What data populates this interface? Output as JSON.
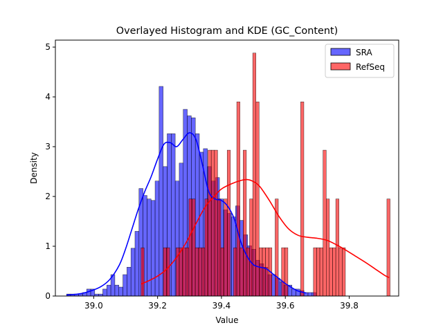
{
  "chart_data": {
    "type": "histogram",
    "title": "Overlayed Histogram and KDE (GC_Content)",
    "xlabel": "Value",
    "ylabel": "Density",
    "xlim": [
      38.88,
      39.955
    ],
    "ylim": [
      0,
      5.14
    ],
    "xticks": [
      39.0,
      39.2,
      39.4,
      39.6,
      39.8
    ],
    "xtick_labels": [
      "39.0",
      "39.2",
      "39.4",
      "39.6",
      "39.8"
    ],
    "yticks": [
      0,
      1,
      2,
      3,
      4,
      5
    ],
    "ytick_labels": [
      "0",
      "1",
      "2",
      "3",
      "4",
      "5"
    ],
    "grid": false,
    "legend_position": "top-right",
    "legend": [
      {
        "label": "SRA",
        "color": "#0000ff"
      },
      {
        "label": "RefSeq",
        "color": "#ff0000"
      }
    ],
    "series": [
      {
        "name": "SRA",
        "color": "#0000ff",
        "bin_start": 38.915,
        "bin_width": 0.0126,
        "densities": [
          0.04,
          0.04,
          0.04,
          0.04,
          0.07,
          0.14,
          0.14,
          0.04,
          0.04,
          0.14,
          0.22,
          0.43,
          0.22,
          0.18,
          0.43,
          0.58,
          0.96,
          1.3,
          2.16,
          2.02,
          1.95,
          1.92,
          2.31,
          4.21,
          2.6,
          3.26,
          3.26,
          2.31,
          2.67,
          3.75,
          3.62,
          3.58,
          3.26,
          2.89,
          2.96,
          2.6,
          2.31,
          2.38,
          1.95,
          1.73,
          1.66,
          1.59,
          1.81,
          1.52,
          1.23,
          1.01,
          0.94,
          0.72,
          0.65,
          0.58,
          0.43,
          0.43,
          0.36,
          0.29,
          0.22,
          0.22,
          0.14,
          0.14,
          0.11,
          0.07,
          0.07,
          0.07
        ]
      },
      {
        "name": "RefSeq",
        "color": "#ff0000",
        "bin_start": 39.148,
        "bin_width": 0.01,
        "densities": [
          0.97,
          0,
          0,
          0,
          0,
          0,
          0,
          0.97,
          0.97,
          0,
          0,
          0.97,
          0.97,
          0.97,
          0.97,
          1.95,
          1.95,
          0.97,
          0.97,
          0.97,
          1.95,
          2.93,
          2.93,
          2.93,
          1.95,
          0.97,
          1.95,
          2.93,
          0,
          0.97,
          3.9,
          0.97,
          2.93,
          0.97,
          1.95,
          4.88,
          3.9,
          0.97,
          0.97,
          0.97,
          0.97,
          0,
          1.95,
          0,
          0.97,
          0.97,
          0,
          0,
          0,
          0,
          3.9,
          0,
          0,
          0,
          0.97,
          0.97,
          0.97,
          2.93,
          1.95,
          0.97,
          0.97,
          1.95,
          0.97,
          0.97,
          0,
          0,
          0,
          0,
          0,
          0,
          0,
          0,
          0,
          0,
          0,
          0,
          0,
          1.95
        ]
      }
    ],
    "kde": [
      {
        "name": "SRA",
        "color": "#0000ff",
        "x": [
          38.915,
          38.95,
          38.98,
          39.02,
          39.05,
          39.08,
          39.1,
          39.12,
          39.14,
          39.16,
          39.18,
          39.2,
          39.22,
          39.24,
          39.26,
          39.28,
          39.3,
          39.32,
          39.34,
          39.36,
          39.38,
          39.4,
          39.42,
          39.44,
          39.46,
          39.48,
          39.5,
          39.52,
          39.54,
          39.56,
          39.58,
          39.6,
          39.62,
          39.64,
          39.666
        ],
        "y": [
          0.02,
          0.04,
          0.08,
          0.18,
          0.33,
          0.62,
          0.95,
          1.35,
          1.75,
          2.1,
          2.4,
          2.75,
          3.05,
          3.08,
          3.0,
          3.15,
          3.28,
          3.15,
          2.65,
          2.1,
          1.95,
          1.92,
          1.8,
          1.55,
          1.1,
          0.8,
          0.63,
          0.58,
          0.55,
          0.45,
          0.35,
          0.25,
          0.17,
          0.1,
          0.06
        ]
      },
      {
        "name": "RefSeq",
        "color": "#ff0000",
        "x": [
          39.148,
          39.17,
          39.2,
          39.23,
          39.26,
          39.29,
          39.32,
          39.35,
          39.38,
          39.4,
          39.43,
          39.46,
          39.48,
          39.5,
          39.52,
          39.55,
          39.58,
          39.61,
          39.64,
          39.67,
          39.7,
          39.73,
          39.76,
          39.79,
          39.82,
          39.85,
          39.88,
          39.91,
          39.925
        ],
        "y": [
          0.24,
          0.3,
          0.4,
          0.55,
          0.78,
          1.08,
          1.45,
          1.8,
          2.02,
          2.15,
          2.25,
          2.32,
          2.34,
          2.3,
          2.2,
          1.92,
          1.6,
          1.35,
          1.22,
          1.18,
          1.16,
          1.12,
          1.03,
          0.92,
          0.8,
          0.68,
          0.55,
          0.42,
          0.37
        ]
      }
    ]
  }
}
